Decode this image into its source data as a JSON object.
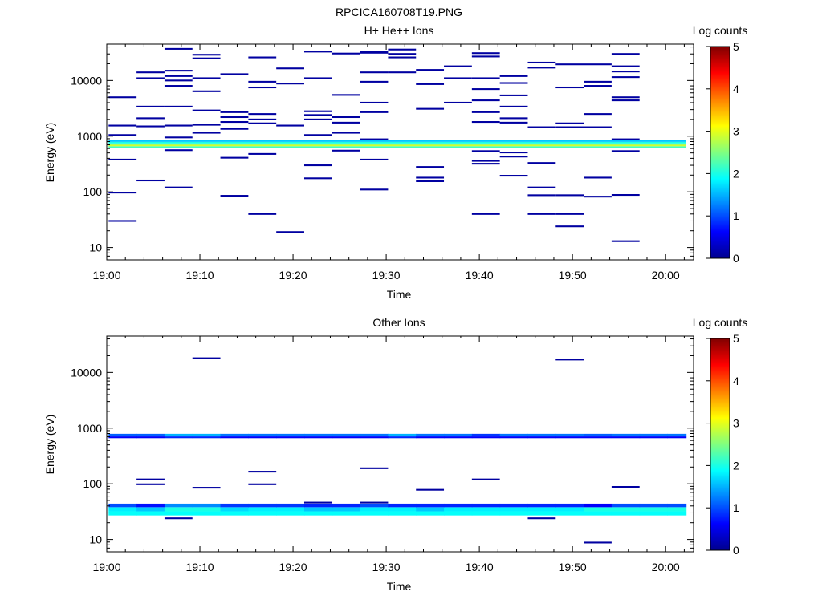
{
  "figure_title": "RPCICA160708T19.PNG",
  "colorbar_scale": {
    "min": 0,
    "max": 5,
    "stops": [
      "#00008f",
      "#0000ff",
      "#0080ff",
      "#00ffff",
      "#80ff80",
      "#ffff00",
      "#ff8000",
      "#ff0000",
      "#800000"
    ]
  },
  "chart_data": [
    {
      "type": "heatmap",
      "title": "H+ He++ Ions",
      "xlabel": "Time",
      "ylabel": "Energy (eV)",
      "colorbar_label": "Log counts",
      "x_range_min": [
        0,
        63
      ],
      "y_range_eV": [
        6,
        45000
      ],
      "y_scale": "log",
      "xticks": [
        {
          "v": 0,
          "label": "19:00"
        },
        {
          "v": 10,
          "label": "19:10"
        },
        {
          "v": 20,
          "label": "19:20"
        },
        {
          "v": 30,
          "label": "19:30"
        },
        {
          "v": 40,
          "label": "19:40"
        },
        {
          "v": 50,
          "label": "19:50"
        },
        {
          "v": 60,
          "label": "20:00"
        }
      ],
      "yticks": [
        {
          "v": 10,
          "label": "10"
        },
        {
          "v": 100,
          "label": "100"
        },
        {
          "v": 1000,
          "label": "1000"
        },
        {
          "v": 10000,
          "label": "10000"
        }
      ],
      "colorbar_ticks": [
        "0",
        "1",
        "2",
        "3",
        "4",
        "5"
      ],
      "time_bins_min": [
        0.2,
        3.2,
        6.2,
        9.2,
        12.2,
        15.2,
        18.2,
        21.2,
        24.2,
        27.2,
        30.2,
        33.2,
        36.2,
        39.2,
        42.2,
        45.2,
        48.2,
        51.2,
        54.2,
        57.2,
        60.2,
        62.2
      ],
      "band": {
        "note": "continuous band across all time bins",
        "rows": [
          {
            "e_lo": 620,
            "e_hi": 660,
            "v": 2.2
          },
          {
            "e_lo": 660,
            "e_hi": 700,
            "v": 2.9
          },
          {
            "e_lo": 700,
            "e_hi": 740,
            "v": 2.5
          },
          {
            "e_lo": 740,
            "e_hi": 790,
            "v": 2.0
          },
          {
            "e_lo": 790,
            "e_hi": 850,
            "v": 1.6
          }
        ]
      },
      "cells": [
        {
          "bin": 0,
          "e": 5000,
          "v": 0.1
        },
        {
          "bin": 0,
          "e": 1550,
          "v": 0.1
        },
        {
          "bin": 0,
          "e": 1050,
          "v": 0.1
        },
        {
          "bin": 0,
          "e": 380,
          "v": 0.1
        },
        {
          "bin": 0,
          "e": 97,
          "v": 0.1
        },
        {
          "bin": 0,
          "e": 30,
          "v": 0.1
        },
        {
          "bin": 1,
          "e": 14000,
          "v": 0.1
        },
        {
          "bin": 1,
          "e": 11000,
          "v": 0.1
        },
        {
          "bin": 1,
          "e": 3400,
          "v": 0.1
        },
        {
          "bin": 1,
          "e": 2100,
          "v": 0.1
        },
        {
          "bin": 1,
          "e": 1500,
          "v": 0.1
        },
        {
          "bin": 1,
          "e": 160,
          "v": 0.1
        },
        {
          "bin": 2,
          "e": 37000,
          "v": 0.1
        },
        {
          "bin": 2,
          "e": 15000,
          "v": 0.1
        },
        {
          "bin": 2,
          "e": 12000,
          "v": 0.1
        },
        {
          "bin": 2,
          "e": 10000,
          "v": 0.1
        },
        {
          "bin": 2,
          "e": 8000,
          "v": 0.1
        },
        {
          "bin": 2,
          "e": 3400,
          "v": 0.1
        },
        {
          "bin": 2,
          "e": 1550,
          "v": 0.1
        },
        {
          "bin": 2,
          "e": 950,
          "v": 0.1
        },
        {
          "bin": 2,
          "e": 560,
          "v": 0.1
        },
        {
          "bin": 2,
          "e": 120,
          "v": 0.1
        },
        {
          "bin": 3,
          "e": 29000,
          "v": 0.1
        },
        {
          "bin": 3,
          "e": 25000,
          "v": 0.1
        },
        {
          "bin": 3,
          "e": 11000,
          "v": 0.1
        },
        {
          "bin": 3,
          "e": 6400,
          "v": 0.1
        },
        {
          "bin": 3,
          "e": 2900,
          "v": 0.1
        },
        {
          "bin": 3,
          "e": 1600,
          "v": 0.1
        },
        {
          "bin": 3,
          "e": 1150,
          "v": 0.1
        },
        {
          "bin": 4,
          "e": 13000,
          "v": 0.1
        },
        {
          "bin": 4,
          "e": 2700,
          "v": 0.1
        },
        {
          "bin": 4,
          "e": 2200,
          "v": 0.1
        },
        {
          "bin": 4,
          "e": 1800,
          "v": 0.1
        },
        {
          "bin": 4,
          "e": 1350,
          "v": 0.1
        },
        {
          "bin": 4,
          "e": 410,
          "v": 0.1
        },
        {
          "bin": 4,
          "e": 85,
          "v": 0.1
        },
        {
          "bin": 5,
          "e": 26000,
          "v": 0.1
        },
        {
          "bin": 5,
          "e": 9500,
          "v": 0.1
        },
        {
          "bin": 5,
          "e": 7500,
          "v": 0.1
        },
        {
          "bin": 5,
          "e": 2500,
          "v": 0.1
        },
        {
          "bin": 5,
          "e": 2000,
          "v": 0.1
        },
        {
          "bin": 5,
          "e": 1700,
          "v": 0.1
        },
        {
          "bin": 5,
          "e": 480,
          "v": 0.1
        },
        {
          "bin": 5,
          "e": 40,
          "v": 0.1
        },
        {
          "bin": 6,
          "e": 16500,
          "v": 0.1
        },
        {
          "bin": 6,
          "e": 8800,
          "v": 0.1
        },
        {
          "bin": 6,
          "e": 1550,
          "v": 0.1
        },
        {
          "bin": 6,
          "e": 19,
          "v": 0.1
        },
        {
          "bin": 7,
          "e": 33000,
          "v": 0.1
        },
        {
          "bin": 7,
          "e": 11000,
          "v": 0.1
        },
        {
          "bin": 7,
          "e": 2800,
          "v": 0.1
        },
        {
          "bin": 7,
          "e": 2400,
          "v": 0.1
        },
        {
          "bin": 7,
          "e": 2000,
          "v": 0.1
        },
        {
          "bin": 7,
          "e": 1050,
          "v": 0.1
        },
        {
          "bin": 7,
          "e": 300,
          "v": 0.1
        },
        {
          "bin": 7,
          "e": 175,
          "v": 0.1
        },
        {
          "bin": 8,
          "e": 30500,
          "v": 0.1
        },
        {
          "bin": 8,
          "e": 5500,
          "v": 0.1
        },
        {
          "bin": 8,
          "e": 2200,
          "v": 0.1
        },
        {
          "bin": 8,
          "e": 1750,
          "v": 0.1
        },
        {
          "bin": 8,
          "e": 1150,
          "v": 0.1
        },
        {
          "bin": 8,
          "e": 550,
          "v": 0.1
        },
        {
          "bin": 9,
          "e": 33000,
          "v": 0.1
        },
        {
          "bin": 9,
          "e": 31500,
          "v": 0.1
        },
        {
          "bin": 9,
          "e": 14000,
          "v": 0.1
        },
        {
          "bin": 9,
          "e": 9500,
          "v": 0.1
        },
        {
          "bin": 9,
          "e": 4000,
          "v": 0.1
        },
        {
          "bin": 9,
          "e": 2700,
          "v": 0.1
        },
        {
          "bin": 9,
          "e": 880,
          "v": 0.1
        },
        {
          "bin": 9,
          "e": 380,
          "v": 0.1
        },
        {
          "bin": 9,
          "e": 110,
          "v": 0.1
        },
        {
          "bin": 10,
          "e": 36000,
          "v": 0.1
        },
        {
          "bin": 10,
          "e": 30000,
          "v": 0.1
        },
        {
          "bin": 10,
          "e": 26000,
          "v": 0.1
        },
        {
          "bin": 10,
          "e": 14000,
          "v": 0.1
        },
        {
          "bin": 11,
          "e": 15500,
          "v": 0.1
        },
        {
          "bin": 11,
          "e": 8600,
          "v": 0.1
        },
        {
          "bin": 11,
          "e": 3100,
          "v": 0.1
        },
        {
          "bin": 11,
          "e": 280,
          "v": 0.1
        },
        {
          "bin": 11,
          "e": 180,
          "v": 0.1
        },
        {
          "bin": 11,
          "e": 155,
          "v": 0.1
        },
        {
          "bin": 12,
          "e": 18000,
          "v": 0.1
        },
        {
          "bin": 12,
          "e": 11000,
          "v": 0.1
        },
        {
          "bin": 12,
          "e": 4000,
          "v": 0.1
        },
        {
          "bin": 13,
          "e": 31000,
          "v": 0.1
        },
        {
          "bin": 13,
          "e": 27000,
          "v": 0.1
        },
        {
          "bin": 13,
          "e": 11000,
          "v": 0.1
        },
        {
          "bin": 13,
          "e": 7000,
          "v": 0.1
        },
        {
          "bin": 13,
          "e": 4400,
          "v": 0.1
        },
        {
          "bin": 13,
          "e": 2700,
          "v": 0.1
        },
        {
          "bin": 13,
          "e": 1800,
          "v": 0.1
        },
        {
          "bin": 13,
          "e": 540,
          "v": 0.1
        },
        {
          "bin": 13,
          "e": 360,
          "v": 0.1
        },
        {
          "bin": 13,
          "e": 320,
          "v": 0.1
        },
        {
          "bin": 13,
          "e": 40,
          "v": 0.1
        },
        {
          "bin": 14,
          "e": 12000,
          "v": 0.1
        },
        {
          "bin": 14,
          "e": 9000,
          "v": 0.1
        },
        {
          "bin": 14,
          "e": 5400,
          "v": 0.1
        },
        {
          "bin": 14,
          "e": 3400,
          "v": 0.1
        },
        {
          "bin": 14,
          "e": 2100,
          "v": 0.1
        },
        {
          "bin": 14,
          "e": 1750,
          "v": 0.1
        },
        {
          "bin": 14,
          "e": 510,
          "v": 0.1
        },
        {
          "bin": 14,
          "e": 430,
          "v": 0.1
        },
        {
          "bin": 14,
          "e": 195,
          "v": 0.1
        },
        {
          "bin": 15,
          "e": 21000,
          "v": 0.1
        },
        {
          "bin": 15,
          "e": 17000,
          "v": 0.1
        },
        {
          "bin": 15,
          "e": 1450,
          "v": 0.1
        },
        {
          "bin": 15,
          "e": 330,
          "v": 0.1
        },
        {
          "bin": 15,
          "e": 120,
          "v": 0.1
        },
        {
          "bin": 15,
          "e": 87,
          "v": 0.1
        },
        {
          "bin": 15,
          "e": 40,
          "v": 0.1
        },
        {
          "bin": 16,
          "e": 19500,
          "v": 0.1
        },
        {
          "bin": 16,
          "e": 7500,
          "v": 0.1
        },
        {
          "bin": 16,
          "e": 1700,
          "v": 0.1
        },
        {
          "bin": 16,
          "e": 1450,
          "v": 0.1
        },
        {
          "bin": 16,
          "e": 87,
          "v": 0.1
        },
        {
          "bin": 16,
          "e": 40,
          "v": 0.1
        },
        {
          "bin": 16,
          "e": 24,
          "v": 0.1
        },
        {
          "bin": 17,
          "e": 19500,
          "v": 0.1
        },
        {
          "bin": 17,
          "e": 9500,
          "v": 0.1
        },
        {
          "bin": 17,
          "e": 8000,
          "v": 0.1
        },
        {
          "bin": 17,
          "e": 2500,
          "v": 0.1
        },
        {
          "bin": 17,
          "e": 1450,
          "v": 0.1
        },
        {
          "bin": 17,
          "e": 180,
          "v": 0.1
        },
        {
          "bin": 17,
          "e": 82,
          "v": 0.1
        },
        {
          "bin": 18,
          "e": 30000,
          "v": 0.1
        },
        {
          "bin": 18,
          "e": 18000,
          "v": 0.1
        },
        {
          "bin": 18,
          "e": 14500,
          "v": 0.1
        },
        {
          "bin": 18,
          "e": 11500,
          "v": 0.1
        },
        {
          "bin": 18,
          "e": 5000,
          "v": 0.1
        },
        {
          "bin": 18,
          "e": 4400,
          "v": 0.1
        },
        {
          "bin": 18,
          "e": 880,
          "v": 0.1
        },
        {
          "bin": 18,
          "e": 540,
          "v": 0.1
        },
        {
          "bin": 18,
          "e": 88,
          "v": 0.1
        },
        {
          "bin": 18,
          "e": 13,
          "v": 0.1
        }
      ]
    },
    {
      "type": "heatmap",
      "title": "Other Ions",
      "xlabel": "Time",
      "ylabel": "Energy (eV)",
      "colorbar_label": "Log counts",
      "x_range_min": [
        0,
        63
      ],
      "y_range_eV": [
        6,
        45000
      ],
      "y_scale": "log",
      "xticks": [
        {
          "v": 0,
          "label": "19:00"
        },
        {
          "v": 10,
          "label": "19:10"
        },
        {
          "v": 20,
          "label": "19:20"
        },
        {
          "v": 30,
          "label": "19:30"
        },
        {
          "v": 40,
          "label": "19:40"
        },
        {
          "v": 50,
          "label": "19:50"
        },
        {
          "v": 60,
          "label": "20:00"
        }
      ],
      "yticks": [
        {
          "v": 10,
          "label": "10"
        },
        {
          "v": 100,
          "label": "100"
        },
        {
          "v": 1000,
          "label": "1000"
        },
        {
          "v": 10000,
          "label": "10000"
        }
      ],
      "colorbar_ticks": [
        "0",
        "1",
        "2",
        "3",
        "4",
        "5"
      ],
      "time_bins_min": [
        0.2,
        3.2,
        6.2,
        9.2,
        12.2,
        15.2,
        18.2,
        21.2,
        24.2,
        27.2,
        30.2,
        33.2,
        36.2,
        39.2,
        42.2,
        45.2,
        48.2,
        51.2,
        54.2,
        57.2,
        60.2,
        62.2
      ],
      "band_cells": [
        {
          "e_lo": 660,
          "e_hi": 710,
          "values": [
            0.6,
            0.6,
            0.8,
            0.8,
            0.6,
            0.6,
            0.6,
            0.6,
            0.6,
            0.6,
            0.8,
            0.6,
            0.6,
            0.6,
            0.6,
            0.6,
            0.6,
            0.6,
            0.6,
            0.6,
            0.6
          ]
        },
        {
          "e_lo": 710,
          "e_hi": 790,
          "values": [
            1.1,
            1.1,
            1.5,
            1.5,
            1.2,
            1.2,
            1.2,
            1.2,
            1.2,
            1.2,
            1.5,
            1.2,
            1.2,
            0.9,
            1.2,
            1.2,
            1.2,
            1.1,
            1.2,
            1.2,
            1.2
          ]
        },
        {
          "e_lo": 27,
          "e_hi": 32,
          "values": [
            1.9,
            1.9,
            1.9,
            1.9,
            1.9,
            1.9,
            1.9,
            1.9,
            1.9,
            1.9,
            1.9,
            1.9,
            1.9,
            1.9,
            1.9,
            1.9,
            1.9,
            1.9,
            1.9,
            1.9,
            1.9
          ]
        },
        {
          "e_lo": 32,
          "e_hi": 38,
          "values": [
            1.8,
            1.6,
            2.0,
            2.0,
            1.7,
            1.8,
            1.8,
            1.6,
            1.6,
            1.8,
            1.8,
            1.6,
            1.8,
            1.8,
            1.8,
            1.8,
            1.8,
            2.0,
            2.0,
            2.0,
            2.0
          ]
        },
        {
          "e_lo": 38,
          "e_hi": 44,
          "values": [
            1.0,
            0.7,
            1.3,
            1.3,
            0.9,
            0.9,
            0.9,
            0.8,
            0.8,
            1.0,
            0.8,
            0.8,
            0.8,
            0.8,
            0.8,
            0.8,
            0.8,
            0.6,
            1.0,
            1.0,
            1.0
          ]
        }
      ],
      "cells": [
        {
          "bin": 1,
          "e": 120,
          "v": 0.1
        },
        {
          "bin": 1,
          "e": 98,
          "v": 0.1
        },
        {
          "bin": 2,
          "e": 24,
          "v": 0.1
        },
        {
          "bin": 3,
          "e": 18000,
          "v": 0.1
        },
        {
          "bin": 3,
          "e": 85,
          "v": 0.1
        },
        {
          "bin": 5,
          "e": 165,
          "v": 0.1
        },
        {
          "bin": 5,
          "e": 98,
          "v": 0.1
        },
        {
          "bin": 7,
          "e": 46,
          "v": 0.1
        },
        {
          "bin": 9,
          "e": 46,
          "v": 0.1
        },
        {
          "bin": 9,
          "e": 190,
          "v": 0.1
        },
        {
          "bin": 11,
          "e": 78,
          "v": 0.1
        },
        {
          "bin": 13,
          "e": 120,
          "v": 0.1
        },
        {
          "bin": 15,
          "e": 24,
          "v": 0.1
        },
        {
          "bin": 16,
          "e": 17000,
          "v": 0.1
        },
        {
          "bin": 17,
          "e": 8.8,
          "v": 0.1
        },
        {
          "bin": 18,
          "e": 88,
          "v": 0.1
        }
      ]
    }
  ]
}
